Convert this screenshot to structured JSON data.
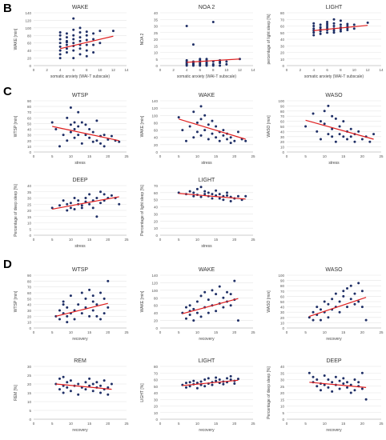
{
  "panels": [
    {
      "label": "B"
    },
    {
      "label": "C"
    },
    {
      "label": "D"
    }
  ],
  "chart_data": [
    {
      "type": "scatter",
      "title": "WAKE",
      "xlabel": "somatic anxiety (WAI-T subscale)",
      "ylabel": "WAKE [min]",
      "xlim": [
        0,
        14
      ],
      "ylim": [
        0,
        140
      ],
      "xticks": [
        0,
        2,
        4,
        6,
        8,
        10,
        12,
        14
      ],
      "yticks": [
        0,
        20,
        40,
        60,
        80,
        100,
        120,
        140
      ],
      "trend": [
        [
          4,
          45
        ],
        [
          12,
          78
        ]
      ],
      "x": [
        4,
        4,
        4,
        4,
        4,
        4,
        4,
        4,
        5,
        5,
        5,
        5,
        5,
        5,
        5,
        6,
        6,
        6,
        6,
        6,
        6,
        6,
        6,
        7,
        7,
        7,
        7,
        7,
        7,
        7,
        8,
        8,
        8,
        8,
        8,
        8,
        9,
        9,
        9,
        9,
        10,
        10,
        12
      ],
      "y": [
        20,
        30,
        40,
        50,
        60,
        70,
        80,
        88,
        35,
        45,
        55,
        65,
        75,
        85,
        62,
        20,
        40,
        52,
        60,
        70,
        80,
        95,
        125,
        30,
        45,
        55,
        65,
        75,
        88,
        100,
        25,
        40,
        55,
        68,
        80,
        90,
        35,
        55,
        70,
        85,
        60,
        92,
        92
      ]
    },
    {
      "type": "scatter",
      "title": "NOA 2",
      "xlabel": "somatic anxiety (WAI-T subscale)",
      "ylabel": "NOA 2",
      "xlim": [
        0,
        14
      ],
      "ylim": [
        0,
        40
      ],
      "xticks": [
        0,
        2,
        4,
        6,
        8,
        10,
        12,
        14
      ],
      "yticks": [
        0,
        5,
        10,
        15,
        20,
        25,
        30,
        35,
        40
      ],
      "trend": [
        [
          4,
          2.5
        ],
        [
          12,
          5
        ]
      ],
      "x": [
        4,
        4,
        4,
        4,
        4,
        4,
        5,
        5,
        5,
        5,
        5,
        6,
        6,
        6,
        6,
        6,
        6,
        7,
        7,
        7,
        7,
        7,
        7,
        8,
        8,
        8,
        8,
        9,
        9,
        9,
        9,
        10,
        10,
        12
      ],
      "y": [
        0,
        1,
        2,
        3,
        4,
        30,
        0,
        1,
        2,
        3,
        16,
        0,
        1,
        2,
        3,
        4,
        5,
        0,
        1,
        2,
        3,
        4,
        5,
        0,
        1,
        3,
        33,
        0,
        2,
        3,
        4,
        1,
        3,
        5
      ]
    },
    {
      "type": "scatter",
      "title": "LIGHT",
      "xlabel": "somatic anxiety (WAI-T subscale)",
      "ylabel": "percentage of light sleep [%]",
      "xlim": [
        0,
        14
      ],
      "ylim": [
        0,
        80
      ],
      "xticks": [
        0,
        2,
        4,
        6,
        8,
        10,
        12,
        14
      ],
      "yticks": [
        0,
        10,
        20,
        30,
        40,
        50,
        60,
        70,
        80
      ],
      "trend": [
        [
          4,
          53
        ],
        [
          12,
          61
        ]
      ],
      "x": [
        4,
        4,
        4,
        4,
        4,
        4,
        5,
        5,
        5,
        5,
        5,
        6,
        6,
        6,
        6,
        6,
        6,
        7,
        7,
        7,
        7,
        7,
        7,
        8,
        8,
        8,
        8,
        8,
        9,
        9,
        9,
        9,
        10,
        10,
        12
      ],
      "y": [
        46,
        50,
        53,
        56,
        60,
        64,
        48,
        52,
        55,
        58,
        62,
        50,
        54,
        57,
        60,
        63,
        66,
        50,
        53,
        56,
        60,
        64,
        70,
        52,
        55,
        58,
        62,
        68,
        54,
        57,
        60,
        63,
        56,
        62,
        65
      ]
    },
    {
      "type": "scatter",
      "title": "WTSP",
      "xlabel": "stress",
      "ylabel": "WTSP [min]",
      "xlim": [
        0,
        25
      ],
      "ylim": [
        0,
        90
      ],
      "xticks": [
        0,
        5,
        10,
        15,
        20,
        25
      ],
      "yticks": [
        0,
        10,
        20,
        30,
        40,
        50,
        60,
        70,
        80,
        90
      ],
      "trend": [
        [
          5,
          45
        ],
        [
          23,
          20
        ]
      ],
      "x": [
        5,
        6,
        7,
        8,
        9,
        9,
        10,
        10,
        10,
        11,
        11,
        11,
        12,
        12,
        12,
        13,
        13,
        14,
        14,
        15,
        15,
        16,
        16,
        17,
        17,
        18,
        18,
        19,
        19,
        20,
        21,
        22,
        23
      ],
      "y": [
        52,
        40,
        10,
        30,
        60,
        20,
        48,
        35,
        78,
        25,
        52,
        40,
        70,
        45,
        30,
        15,
        52,
        30,
        48,
        25,
        40,
        18,
        35,
        20,
        55,
        28,
        15,
        30,
        10,
        22,
        28,
        20,
        18
      ]
    },
    {
      "type": "scatter",
      "title": "WAKE",
      "xlabel": "stress",
      "ylabel": "WAKE [min]",
      "xlim": [
        0,
        25
      ],
      "ylim": [
        0,
        140
      ],
      "xticks": [
        0,
        5,
        10,
        15,
        20,
        25
      ],
      "yticks": [
        0,
        20,
        40,
        60,
        80,
        100,
        120,
        140
      ],
      "trend": [
        [
          5,
          90
        ],
        [
          23,
          35
        ]
      ],
      "x": [
        5,
        6,
        7,
        8,
        9,
        9,
        10,
        10,
        11,
        11,
        11,
        12,
        12,
        13,
        13,
        14,
        14,
        15,
        15,
        16,
        16,
        17,
        17,
        18,
        18,
        19,
        19,
        20,
        21,
        22,
        23
      ],
      "y": [
        95,
        60,
        30,
        70,
        110,
        40,
        80,
        55,
        125,
        45,
        90,
        60,
        100,
        35,
        75,
        50,
        85,
        40,
        70,
        55,
        30,
        60,
        45,
        35,
        50,
        25,
        40,
        30,
        55,
        35,
        30
      ]
    },
    {
      "type": "scatter",
      "title": "WASO",
      "xlabel": "stress",
      "ylabel": "WASO [min]",
      "xlim": [
        0,
        25
      ],
      "ylim": [
        0,
        100
      ],
      "xticks": [
        0,
        5,
        10,
        15,
        20,
        25
      ],
      "yticks": [
        0,
        10,
        20,
        30,
        40,
        50,
        60,
        70,
        80,
        90,
        100
      ],
      "trend": [
        [
          5,
          62
        ],
        [
          23,
          25
        ]
      ],
      "x": [
        5,
        7,
        8,
        9,
        9,
        10,
        10,
        11,
        11,
        12,
        12,
        12,
        13,
        13,
        14,
        14,
        15,
        15,
        16,
        16,
        17,
        17,
        18,
        18,
        19,
        20,
        21,
        22,
        23
      ],
      "y": [
        50,
        75,
        40,
        60,
        25,
        80,
        55,
        90,
        35,
        70,
        45,
        30,
        65,
        20,
        50,
        35,
        60,
        30,
        40,
        25,
        45,
        30,
        35,
        20,
        40,
        25,
        30,
        20,
        35
      ]
    },
    {
      "type": "scatter",
      "title": "DEEP",
      "xlabel": "stress",
      "ylabel": "Percentage of deep sleep [%]",
      "xlim": [
        0,
        25
      ],
      "ylim": [
        0,
        40
      ],
      "xticks": [
        0,
        5,
        10,
        15,
        20,
        25
      ],
      "yticks": [
        0,
        5,
        10,
        15,
        20,
        25,
        30,
        35,
        40
      ],
      "trend": [
        [
          5,
          21
        ],
        [
          23,
          31
        ]
      ],
      "x": [
        5,
        7,
        8,
        9,
        9,
        10,
        10,
        11,
        11,
        12,
        12,
        13,
        13,
        14,
        14,
        15,
        15,
        16,
        16,
        17,
        17,
        18,
        18,
        19,
        19,
        20,
        21,
        22,
        23
      ],
      "y": [
        22,
        24,
        28,
        20,
        25,
        26,
        22,
        30,
        21,
        25,
        28,
        24,
        22,
        27,
        30,
        25,
        33,
        28,
        22,
        15,
        30,
        35,
        26,
        33,
        28,
        30,
        32,
        30,
        25
      ]
    },
    {
      "type": "scatter",
      "title": "LIGHT",
      "xlabel": "stress",
      "ylabel": "Percentage of light sleep [%]",
      "xlim": [
        0,
        25
      ],
      "ylim": [
        0,
        70
      ],
      "xticks": [
        0,
        5,
        10,
        15,
        20,
        25
      ],
      "yticks": [
        0,
        10,
        20,
        30,
        40,
        50,
        60,
        70
      ],
      "trend": [
        [
          5,
          59
        ],
        [
          23,
          51
        ]
      ],
      "x": [
        5,
        7,
        8,
        9,
        9,
        10,
        10,
        11,
        11,
        12,
        12,
        13,
        13,
        14,
        14,
        15,
        15,
        16,
        16,
        17,
        17,
        18,
        18,
        19,
        19,
        20,
        21,
        22,
        23
      ],
      "y": [
        60,
        58,
        62,
        55,
        60,
        65,
        57,
        68,
        54,
        58,
        62,
        55,
        60,
        52,
        58,
        56,
        63,
        52,
        58,
        50,
        55,
        56,
        60,
        48,
        54,
        52,
        55,
        50,
        55
      ]
    },
    {
      "type": "scatter",
      "title": "WTSP",
      "xlabel": "recovery",
      "ylabel": "WTSP [min]",
      "xlim": [
        0,
        25
      ],
      "ylim": [
        0,
        90
      ],
      "xticks": [
        0,
        5,
        10,
        15,
        20,
        25
      ],
      "yticks": [
        0,
        10,
        20,
        30,
        40,
        50,
        60,
        70,
        80,
        90
      ],
      "trend": [
        [
          6,
          20
        ],
        [
          20,
          42
        ]
      ],
      "x": [
        6,
        7,
        7,
        8,
        8,
        8,
        9,
        9,
        9,
        10,
        10,
        11,
        11,
        12,
        13,
        13,
        14,
        14,
        15,
        15,
        16,
        16,
        16,
        17,
        17,
        18,
        18,
        19,
        19,
        20,
        20
      ],
      "y": [
        20,
        15,
        30,
        25,
        40,
        45,
        10,
        35,
        20,
        25,
        55,
        30,
        15,
        40,
        25,
        60,
        35,
        50,
        20,
        65,
        30,
        45,
        55,
        20,
        40,
        15,
        60,
        50,
        25,
        80,
        35
      ]
    },
    {
      "type": "scatter",
      "title": "WAKE",
      "xlabel": "recovery",
      "ylabel": "WAKE [min]",
      "xlim": [
        0,
        25
      ],
      "ylim": [
        0,
        140
      ],
      "xticks": [
        0,
        5,
        10,
        15,
        20,
        25
      ],
      "yticks": [
        0,
        20,
        40,
        60,
        80,
        100,
        120,
        140
      ],
      "trend": [
        [
          6,
          38
        ],
        [
          21,
          78
        ]
      ],
      "x": [
        6,
        7,
        7,
        8,
        8,
        8,
        9,
        9,
        10,
        10,
        11,
        11,
        12,
        12,
        13,
        13,
        14,
        14,
        15,
        15,
        16,
        16,
        17,
        17,
        18,
        18,
        19,
        19,
        20,
        20,
        21
      ],
      "y": [
        40,
        25,
        55,
        35,
        45,
        60,
        20,
        50,
        40,
        70,
        30,
        85,
        55,
        95,
        40,
        75,
        60,
        100,
        45,
        90,
        65,
        110,
        55,
        80,
        70,
        95,
        60,
        90,
        75,
        125,
        20
      ]
    },
    {
      "type": "scatter",
      "title": "WASO",
      "xlabel": "recovery",
      "ylabel": "WASO [min]",
      "xlim": [
        0,
        25
      ],
      "ylim": [
        0,
        100
      ],
      "xticks": [
        0,
        5,
        10,
        15,
        20,
        25
      ],
      "yticks": [
        0,
        10,
        20,
        30,
        40,
        50,
        60,
        70,
        80,
        90,
        100
      ],
      "trend": [
        [
          6,
          22
        ],
        [
          21,
          58
        ]
      ],
      "x": [
        6,
        7,
        7,
        8,
        8,
        9,
        9,
        10,
        10,
        11,
        11,
        12,
        12,
        13,
        13,
        14,
        14,
        15,
        15,
        16,
        16,
        17,
        17,
        18,
        18,
        19,
        19,
        20,
        20,
        21
      ],
      "y": [
        20,
        30,
        15,
        40,
        25,
        35,
        15,
        50,
        30,
        45,
        20,
        55,
        35,
        65,
        40,
        50,
        30,
        60,
        70,
        40,
        75,
        55,
        80,
        45,
        65,
        85,
        50,
        70,
        40,
        15
      ]
    },
    {
      "type": "scatter",
      "title": "REM",
      "xlabel": "recovery",
      "ylabel": "REM [%]",
      "xlim": [
        0,
        25
      ],
      "ylim": [
        0,
        30
      ],
      "xticks": [
        0,
        5,
        10,
        15,
        20,
        25
      ],
      "yticks": [
        0,
        5,
        10,
        15,
        20,
        25,
        30
      ],
      "trend": [
        [
          6,
          20
        ],
        [
          21,
          17
        ]
      ],
      "x": [
        6,
        7,
        7,
        8,
        8,
        8,
        9,
        9,
        10,
        10,
        11,
        12,
        12,
        13,
        14,
        14,
        15,
        15,
        16,
        16,
        17,
        17,
        18,
        18,
        19,
        19,
        20,
        20,
        21
      ],
      "y": [
        20,
        17,
        23,
        19,
        24,
        15,
        21,
        18,
        22,
        16,
        19,
        20,
        14,
        18,
        21,
        17,
        19,
        23,
        16,
        20,
        18,
        21,
        15,
        19,
        17,
        22,
        18,
        14,
        20
      ]
    },
    {
      "type": "scatter",
      "title": "LIGHT",
      "xlabel": "recovery",
      "ylabel": "LIGHT [%]",
      "xlim": [
        0,
        25
      ],
      "ylim": [
        0,
        80
      ],
      "xticks": [
        0,
        5,
        10,
        15,
        20,
        25
      ],
      "yticks": [
        0,
        10,
        20,
        30,
        40,
        50,
        60,
        70,
        80
      ],
      "trend": [
        [
          6,
          51
        ],
        [
          21,
          59
        ]
      ],
      "x": [
        6,
        7,
        7,
        8,
        8,
        9,
        9,
        10,
        10,
        11,
        11,
        12,
        12,
        13,
        13,
        14,
        14,
        15,
        15,
        16,
        16,
        17,
        17,
        18,
        18,
        19,
        19,
        20,
        20,
        21
      ],
      "y": [
        52,
        48,
        55,
        50,
        56,
        53,
        58,
        47,
        55,
        52,
        57,
        60,
        50,
        54,
        62,
        56,
        52,
        58,
        63,
        55,
        60,
        53,
        57,
        62,
        56,
        60,
        65,
        58,
        54,
        61
      ]
    },
    {
      "type": "scatter",
      "title": "DEEP",
      "xlabel": "recovery",
      "ylabel": "Percentage of deep sleep [%]",
      "xlim": [
        0,
        25
      ],
      "ylim": [
        0,
        40
      ],
      "xticks": [
        0,
        5,
        10,
        15,
        20,
        25
      ],
      "yticks": [
        0,
        5,
        10,
        15,
        20,
        25,
        30,
        35,
        40
      ],
      "trend": [
        [
          6,
          28
        ],
        [
          21,
          24
        ]
      ],
      "x": [
        6,
        7,
        7,
        8,
        8,
        9,
        9,
        10,
        10,
        11,
        11,
        12,
        12,
        13,
        13,
        14,
        14,
        15,
        15,
        16,
        16,
        17,
        17,
        18,
        18,
        19,
        19,
        20,
        20,
        21
      ],
      "y": [
        35,
        28,
        32,
        25,
        30,
        27,
        22,
        33,
        26,
        30,
        24,
        28,
        21,
        32,
        26,
        29,
        23,
        27,
        31,
        24,
        28,
        20,
        26,
        30,
        22,
        25,
        28,
        23,
        35,
        15
      ]
    }
  ]
}
